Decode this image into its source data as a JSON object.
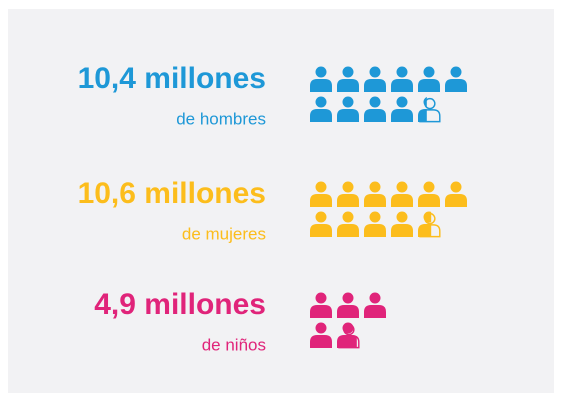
{
  "chart_data": {
    "type": "pictogram",
    "categories": [
      "de hombres",
      "de mujeres",
      "de niños"
    ],
    "values": [
      10.4,
      10.6,
      4.9
    ],
    "value_labels": [
      "10,4 millones",
      "10,6 millones",
      "4,9 millones"
    ],
    "colors": [
      "#1e98d7",
      "#fcbd1c",
      "#e0247a"
    ]
  }
}
